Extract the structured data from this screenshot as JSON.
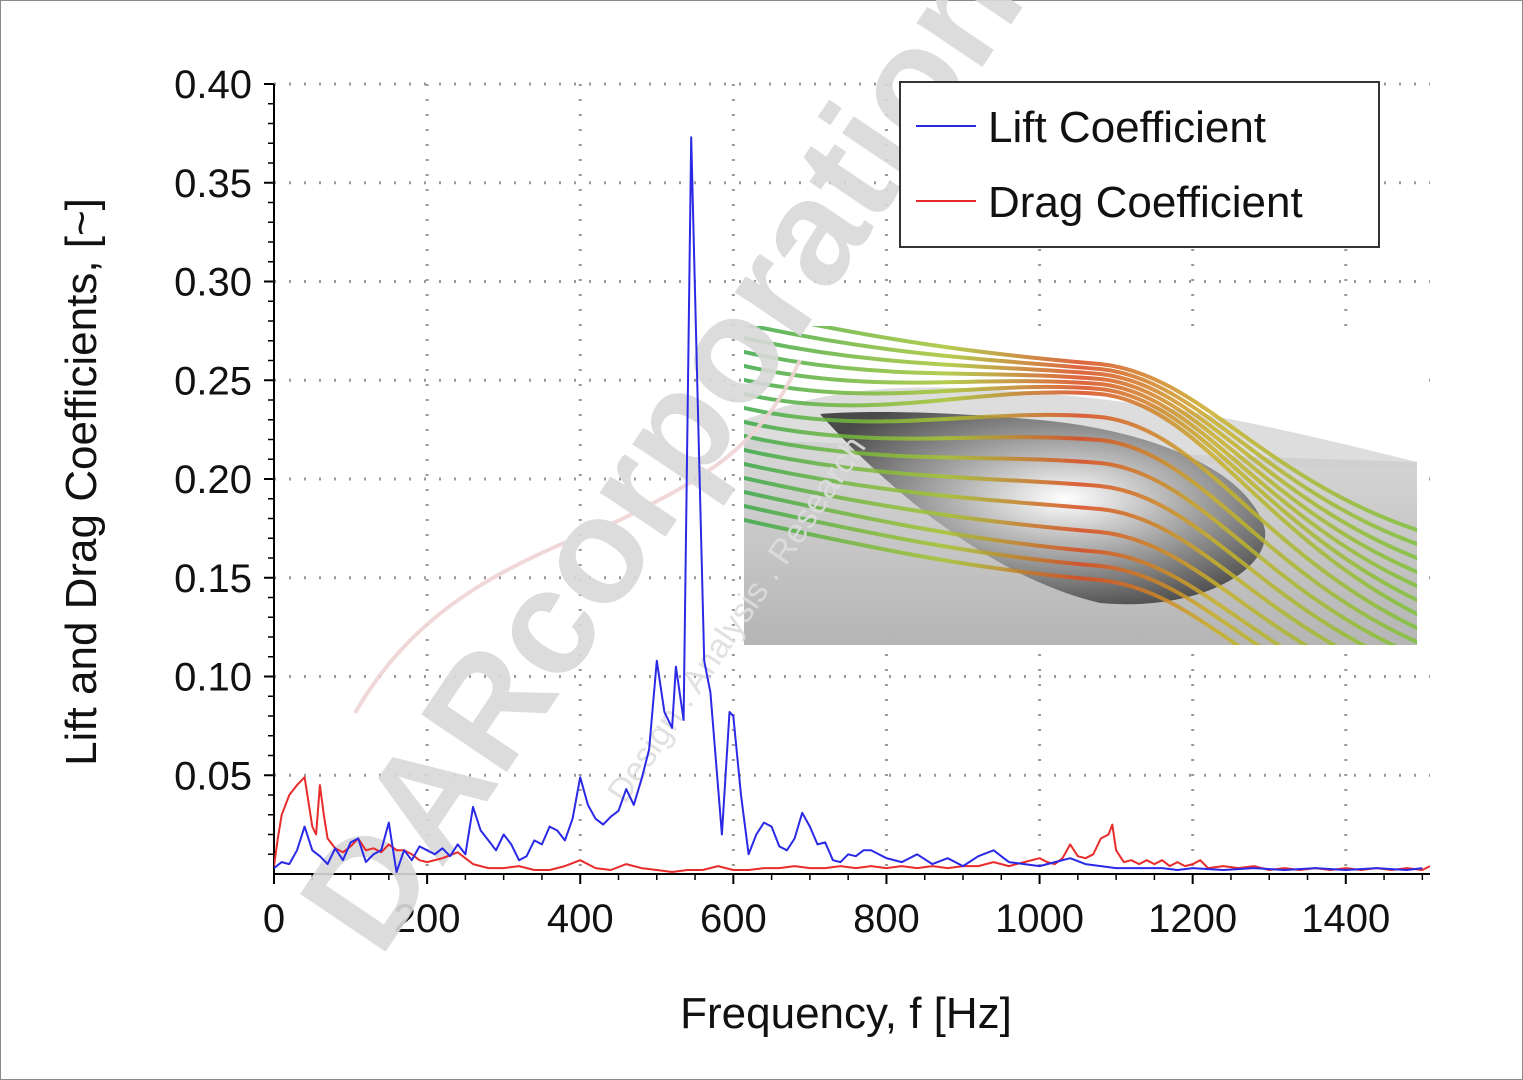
{
  "chart_data": {
    "type": "line",
    "xlabel": "Frequency, f [Hz]",
    "ylabel": "Lift and Drag Coefficients, [~]",
    "xlim": [
      0,
      1510
    ],
    "ylim": [
      0,
      0.4
    ],
    "x_ticks": [
      0,
      200,
      400,
      600,
      800,
      1000,
      1200,
      1400
    ],
    "x_tick_labels": [
      "0",
      "200",
      "400",
      "600",
      "800",
      "1000",
      "1200",
      "1400"
    ],
    "y_ticks": [
      0.05,
      0.1,
      0.15,
      0.2,
      0.25,
      0.3,
      0.35,
      0.4
    ],
    "y_tick_labels": [
      "0.05",
      "0.10",
      "0.15",
      "0.20",
      "0.25",
      "0.30",
      "0.35",
      "0.40"
    ],
    "grid": true,
    "legend_position": "top-right",
    "series": [
      {
        "name": "Lift Coefficient",
        "color": "#2a2ae6",
        "points": [
          [
            0,
            0.003
          ],
          [
            10,
            0.006
          ],
          [
            20,
            0.005
          ],
          [
            30,
            0.012
          ],
          [
            40,
            0.024
          ],
          [
            50,
            0.012
          ],
          [
            60,
            0.009
          ],
          [
            70,
            0.005
          ],
          [
            80,
            0.013
          ],
          [
            90,
            0.007
          ],
          [
            100,
            0.016
          ],
          [
            110,
            0.018
          ],
          [
            120,
            0.006
          ],
          [
            130,
            0.01
          ],
          [
            140,
            0.012
          ],
          [
            150,
            0.026
          ],
          [
            160,
            0.001
          ],
          [
            170,
            0.012
          ],
          [
            180,
            0.007
          ],
          [
            190,
            0.014
          ],
          [
            200,
            0.012
          ],
          [
            210,
            0.01
          ],
          [
            220,
            0.013
          ],
          [
            230,
            0.009
          ],
          [
            240,
            0.015
          ],
          [
            250,
            0.01
          ],
          [
            260,
            0.034
          ],
          [
            270,
            0.022
          ],
          [
            280,
            0.017
          ],
          [
            290,
            0.012
          ],
          [
            300,
            0.02
          ],
          [
            310,
            0.015
          ],
          [
            320,
            0.007
          ],
          [
            330,
            0.009
          ],
          [
            340,
            0.017
          ],
          [
            350,
            0.015
          ],
          [
            360,
            0.024
          ],
          [
            370,
            0.022
          ],
          [
            380,
            0.017
          ],
          [
            390,
            0.028
          ],
          [
            400,
            0.049
          ],
          [
            410,
            0.035
          ],
          [
            420,
            0.028
          ],
          [
            430,
            0.025
          ],
          [
            440,
            0.029
          ],
          [
            450,
            0.032
          ],
          [
            460,
            0.043
          ],
          [
            470,
            0.035
          ],
          [
            480,
            0.048
          ],
          [
            490,
            0.063
          ],
          [
            500,
            0.108
          ],
          [
            510,
            0.082
          ],
          [
            520,
            0.074
          ],
          [
            525,
            0.105
          ],
          [
            535,
            0.078
          ],
          [
            545,
            0.373
          ],
          [
            555,
            0.215
          ],
          [
            562,
            0.108
          ],
          [
            570,
            0.092
          ],
          [
            585,
            0.02
          ],
          [
            595,
            0.082
          ],
          [
            600,
            0.08
          ],
          [
            610,
            0.04
          ],
          [
            620,
            0.01
          ],
          [
            630,
            0.02
          ],
          [
            640,
            0.026
          ],
          [
            650,
            0.024
          ],
          [
            660,
            0.014
          ],
          [
            670,
            0.012
          ],
          [
            680,
            0.018
          ],
          [
            690,
            0.031
          ],
          [
            700,
            0.024
          ],
          [
            710,
            0.015
          ],
          [
            720,
            0.016
          ],
          [
            730,
            0.007
          ],
          [
            740,
            0.006
          ],
          [
            750,
            0.01
          ],
          [
            760,
            0.009
          ],
          [
            770,
            0.012
          ],
          [
            780,
            0.012
          ],
          [
            790,
            0.01
          ],
          [
            800,
            0.008
          ],
          [
            820,
            0.006
          ],
          [
            840,
            0.01
          ],
          [
            860,
            0.005
          ],
          [
            880,
            0.008
          ],
          [
            900,
            0.004
          ],
          [
            920,
            0.009
          ],
          [
            940,
            0.012
          ],
          [
            960,
            0.006
          ],
          [
            980,
            0.005
          ],
          [
            1000,
            0.004
          ],
          [
            1020,
            0.006
          ],
          [
            1040,
            0.008
          ],
          [
            1060,
            0.005
          ],
          [
            1080,
            0.004
          ],
          [
            1100,
            0.003
          ],
          [
            1120,
            0.003
          ],
          [
            1140,
            0.003
          ],
          [
            1160,
            0.003
          ],
          [
            1180,
            0.002
          ],
          [
            1200,
            0.003
          ],
          [
            1240,
            0.002
          ],
          [
            1280,
            0.003
          ],
          [
            1320,
            0.002
          ],
          [
            1360,
            0.003
          ],
          [
            1400,
            0.002
          ],
          [
            1440,
            0.003
          ],
          [
            1480,
            0.002
          ],
          [
            1500,
            0.003
          ]
        ]
      },
      {
        "name": "Drag Coefficient",
        "color": "#e82c2c",
        "points": [
          [
            0,
            0.004
          ],
          [
            5,
            0.018
          ],
          [
            10,
            0.03
          ],
          [
            20,
            0.04
          ],
          [
            30,
            0.045
          ],
          [
            40,
            0.049
          ],
          [
            50,
            0.024
          ],
          [
            55,
            0.02
          ],
          [
            60,
            0.045
          ],
          [
            65,
            0.03
          ],
          [
            70,
            0.018
          ],
          [
            80,
            0.013
          ],
          [
            90,
            0.011
          ],
          [
            100,
            0.014
          ],
          [
            110,
            0.018
          ],
          [
            120,
            0.012
          ],
          [
            130,
            0.013
          ],
          [
            140,
            0.011
          ],
          [
            150,
            0.015
          ],
          [
            160,
            0.012
          ],
          [
            170,
            0.012
          ],
          [
            180,
            0.01
          ],
          [
            190,
            0.007
          ],
          [
            200,
            0.006
          ],
          [
            220,
            0.008
          ],
          [
            240,
            0.011
          ],
          [
            260,
            0.005
          ],
          [
            280,
            0.003
          ],
          [
            300,
            0.003
          ],
          [
            320,
            0.004
          ],
          [
            340,
            0.002
          ],
          [
            360,
            0.002
          ],
          [
            380,
            0.004
          ],
          [
            400,
            0.007
          ],
          [
            420,
            0.003
          ],
          [
            440,
            0.002
          ],
          [
            460,
            0.005
          ],
          [
            480,
            0.003
          ],
          [
            500,
            0.002
          ],
          [
            520,
            0.001
          ],
          [
            540,
            0.002
          ],
          [
            560,
            0.002
          ],
          [
            580,
            0.004
          ],
          [
            600,
            0.002
          ],
          [
            620,
            0.002
          ],
          [
            640,
            0.003
          ],
          [
            660,
            0.003
          ],
          [
            680,
            0.004
          ],
          [
            700,
            0.003
          ],
          [
            720,
            0.003
          ],
          [
            740,
            0.004
          ],
          [
            760,
            0.003
          ],
          [
            780,
            0.004
          ],
          [
            800,
            0.003
          ],
          [
            820,
            0.004
          ],
          [
            840,
            0.003
          ],
          [
            860,
            0.004
          ],
          [
            880,
            0.003
          ],
          [
            900,
            0.004
          ],
          [
            920,
            0.004
          ],
          [
            940,
            0.006
          ],
          [
            960,
            0.004
          ],
          [
            980,
            0.006
          ],
          [
            1000,
            0.008
          ],
          [
            1010,
            0.006
          ],
          [
            1020,
            0.005
          ],
          [
            1030,
            0.008
          ],
          [
            1040,
            0.015
          ],
          [
            1050,
            0.009
          ],
          [
            1060,
            0.008
          ],
          [
            1070,
            0.01
          ],
          [
            1080,
            0.018
          ],
          [
            1090,
            0.02
          ],
          [
            1095,
            0.025
          ],
          [
            1100,
            0.012
          ],
          [
            1110,
            0.006
          ],
          [
            1120,
            0.007
          ],
          [
            1130,
            0.005
          ],
          [
            1140,
            0.007
          ],
          [
            1150,
            0.005
          ],
          [
            1160,
            0.007
          ],
          [
            1170,
            0.004
          ],
          [
            1180,
            0.006
          ],
          [
            1190,
            0.004
          ],
          [
            1200,
            0.005
          ],
          [
            1210,
            0.007
          ],
          [
            1220,
            0.003
          ],
          [
            1240,
            0.004
          ],
          [
            1260,
            0.003
          ],
          [
            1280,
            0.004
          ],
          [
            1300,
            0.002
          ],
          [
            1320,
            0.003
          ],
          [
            1340,
            0.002
          ],
          [
            1360,
            0.003
          ],
          [
            1380,
            0.002
          ],
          [
            1400,
            0.003
          ],
          [
            1420,
            0.002
          ],
          [
            1440,
            0.003
          ],
          [
            1460,
            0.002
          ],
          [
            1480,
            0.003
          ],
          [
            1500,
            0.002
          ],
          [
            1510,
            0.004
          ]
        ]
      }
    ]
  },
  "watermark": {
    "main": "DARcorporation",
    "sub": "Design . Analysis . Research"
  },
  "colors": {
    "axis": "#000000",
    "grid": "#9a9a9a",
    "watermark": "#d9d9d9"
  }
}
